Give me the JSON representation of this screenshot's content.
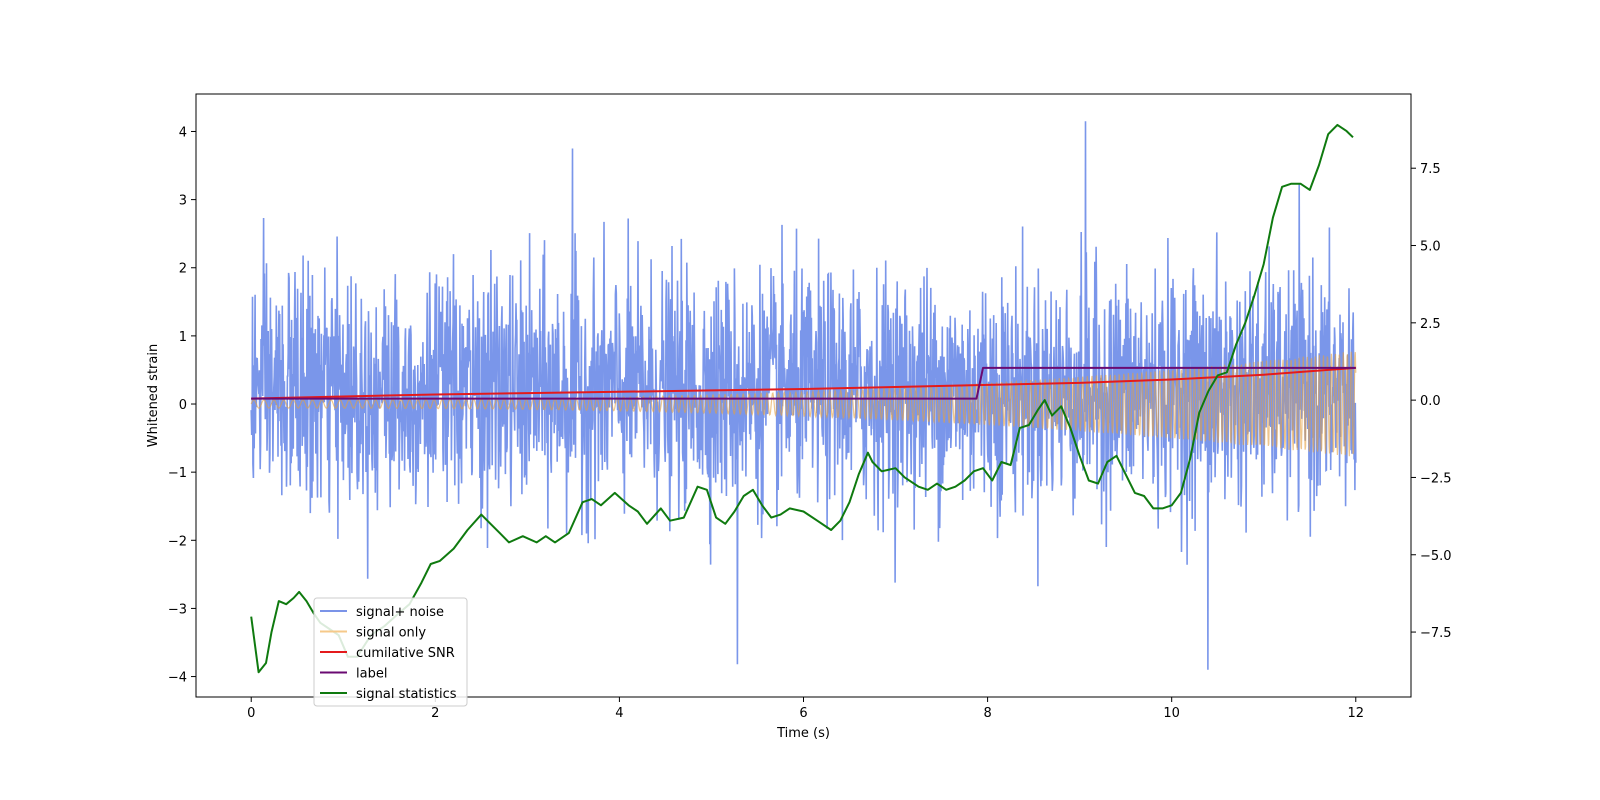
{
  "chart_data": {
    "type": "line",
    "xlabel": "Time (s)",
    "ylabel_left": "Whitened strain",
    "ylabel_right": "",
    "xlim": [
      -0.6,
      12.6
    ],
    "ylim_left": [
      -4.3,
      4.55
    ],
    "ylim_right": [
      -9.6,
      9.9
    ],
    "x_ticks": [
      0,
      2,
      4,
      6,
      8,
      10,
      12
    ],
    "y_ticks_left": [
      -4,
      -3,
      -2,
      -1,
      0,
      1,
      2,
      3,
      4
    ],
    "y_ticks_right": [
      -7.5,
      -5.0,
      -2.5,
      0.0,
      2.5,
      5.0,
      7.5
    ],
    "y_tick_labels_right": [
      "−7.5",
      "−5.0",
      "−2.5",
      "0.0",
      "2.5",
      "5.0",
      "7.5"
    ],
    "y_tick_labels_left": [
      "−4",
      "−3",
      "−2",
      "−1",
      "0",
      "1",
      "2",
      "3",
      "4"
    ],
    "grid": false,
    "legend_position": "lower-left",
    "colors": {
      "signal_noise": "#4169e1",
      "signal_only": "#e5a03f",
      "cumulative_snr": "#e41a1c",
      "label": "#6a0a72",
      "signal_statistics": "#0f7a0f"
    },
    "legend": [
      {
        "label": "signal+ noise",
        "color": "#7b94e8"
      },
      {
        "label": "signal only",
        "color": "#f6c98a"
      },
      {
        "label": "cumilative SNR",
        "color": "#e41a1c"
      },
      {
        "label": "label",
        "color": "#6a0a72"
      },
      {
        "label": "signal statistics",
        "color": "#0f7a0f"
      }
    ],
    "series": [
      {
        "name": "signal+ noise",
        "axis": "left",
        "x_range": [
          0,
          12
        ],
        "typical_band": [
          -1.9,
          2.0
        ],
        "peak_max": 4.15,
        "peak_min": -3.9
      },
      {
        "name": "signal only",
        "axis": "left",
        "x_range": [
          0,
          12
        ],
        "amplitude_start": 0.06,
        "amplitude_end": 0.78
      },
      {
        "name": "cumilative SNR",
        "axis": "left",
        "x": [
          0,
          1,
          2,
          3,
          4,
          5,
          6,
          7,
          8,
          9,
          10,
          11,
          11.5,
          12
        ],
        "y": [
          0.08,
          0.11,
          0.14,
          0.16,
          0.18,
          0.2,
          0.22,
          0.25,
          0.28,
          0.31,
          0.36,
          0.43,
          0.48,
          0.53
        ]
      },
      {
        "name": "label",
        "axis": "left",
        "x": [
          0,
          7.88,
          7.95,
          12
        ],
        "y": [
          0.08,
          0.08,
          0.53,
          0.53
        ]
      },
      {
        "name": "signal statistics",
        "axis": "right",
        "x": [
          0,
          0.08,
          0.16,
          0.22,
          0.3,
          0.38,
          0.46,
          0.52,
          0.6,
          0.68,
          0.75,
          0.85,
          0.95,
          1.05,
          1.15,
          1.3,
          1.45,
          1.6,
          1.72,
          1.85,
          1.95,
          2.05,
          2.2,
          2.35,
          2.5,
          2.6,
          2.7,
          2.8,
          2.95,
          3.1,
          3.2,
          3.3,
          3.45,
          3.6,
          3.7,
          3.8,
          3.95,
          4.1,
          4.2,
          4.3,
          4.45,
          4.55,
          4.7,
          4.85,
          4.95,
          5.05,
          5.15,
          5.25,
          5.35,
          5.45,
          5.55,
          5.65,
          5.75,
          5.85,
          6.0,
          6.15,
          6.3,
          6.4,
          6.5,
          6.6,
          6.7,
          6.75,
          6.85,
          7.0,
          7.1,
          7.25,
          7.35,
          7.45,
          7.55,
          7.65,
          7.75,
          7.85,
          7.95,
          8.05,
          8.15,
          8.25,
          8.35,
          8.45,
          8.55,
          8.62,
          8.7,
          8.8,
          8.9,
          9.0,
          9.1,
          9.2,
          9.3,
          9.4,
          9.5,
          9.6,
          9.7,
          9.8,
          9.9,
          10.0,
          10.1,
          10.2,
          10.3,
          10.4,
          10.5,
          10.6,
          10.7,
          10.8,
          10.9,
          11.0,
          11.1,
          11.2,
          11.3,
          11.4,
          11.5,
          11.6,
          11.7,
          11.8,
          11.9,
          11.97
        ],
        "y": [
          -7.0,
          -8.8,
          -8.5,
          -7.5,
          -6.5,
          -6.6,
          -6.4,
          -6.2,
          -6.5,
          -6.9,
          -7.2,
          -7.4,
          -7.6,
          -8.3,
          -8.3,
          -7.6,
          -7.3,
          -6.9,
          -6.6,
          -5.9,
          -5.3,
          -5.2,
          -4.8,
          -4.2,
          -3.7,
          -4.0,
          -4.3,
          -4.6,
          -4.4,
          -4.6,
          -4.4,
          -4.6,
          -4.3,
          -3.3,
          -3.2,
          -3.4,
          -3.0,
          -3.4,
          -3.6,
          -4.0,
          -3.5,
          -3.9,
          -3.8,
          -2.8,
          -2.9,
          -3.8,
          -4.0,
          -3.6,
          -3.1,
          -2.9,
          -3.4,
          -3.8,
          -3.7,
          -3.5,
          -3.6,
          -3.9,
          -4.2,
          -3.9,
          -3.3,
          -2.4,
          -1.7,
          -2.0,
          -2.3,
          -2.2,
          -2.5,
          -2.8,
          -2.9,
          -2.7,
          -2.9,
          -2.8,
          -2.6,
          -2.3,
          -2.2,
          -2.6,
          -2.0,
          -2.1,
          -0.9,
          -0.8,
          -0.3,
          0.0,
          -0.5,
          -0.2,
          -0.9,
          -1.8,
          -2.6,
          -2.7,
          -2.0,
          -1.8,
          -2.4,
          -3.0,
          -3.1,
          -3.5,
          -3.5,
          -3.4,
          -3.0,
          -1.9,
          -0.4,
          0.3,
          0.8,
          0.9,
          1.8,
          2.5,
          3.4,
          4.4,
          5.9,
          6.9,
          7.0,
          7.0,
          6.8,
          7.6,
          8.6,
          8.9,
          8.7,
          8.5
        ]
      }
    ]
  }
}
